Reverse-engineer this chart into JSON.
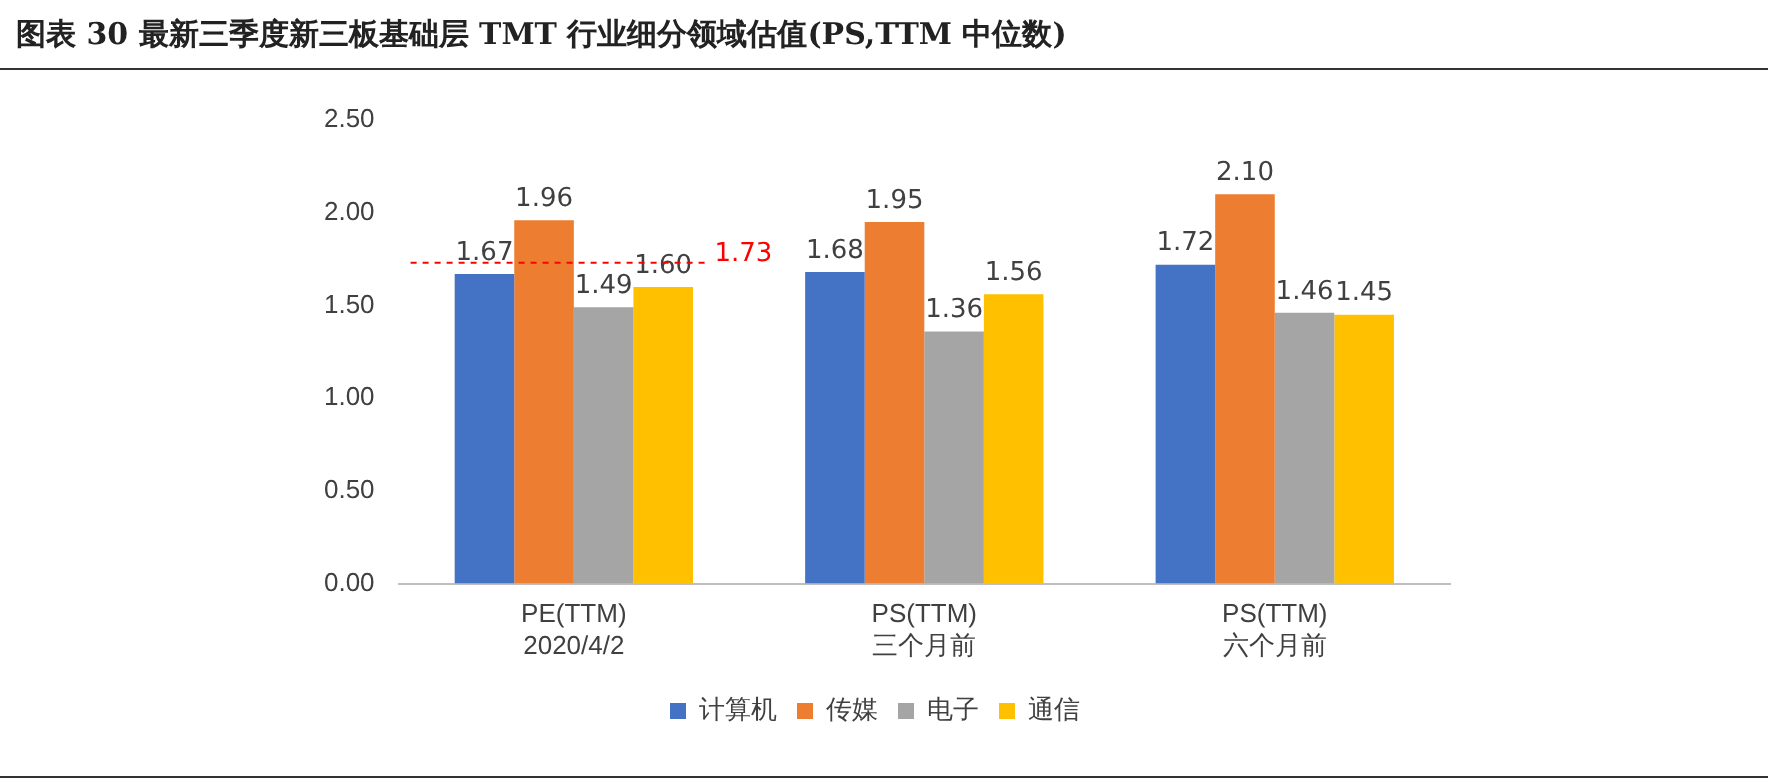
{
  "chart_data": {
    "type": "bar",
    "title": "图表 30 最新三季度新三板基础层 TMT 行业细分领域估值(PS,TTM 中位数)",
    "categories": [
      "PE(TTM)\n2020/4/2",
      "PS(TTM)\n三个月前",
      "PS(TTM)\n六个月前"
    ],
    "series": [
      {
        "name": "计算机",
        "color": "#4472c4",
        "values": [
          1.67,
          1.68,
          1.72
        ],
        "value_labels": [
          "1.67",
          "1.68",
          "1.72"
        ]
      },
      {
        "name": "传媒",
        "color": "#ed7d31",
        "values": [
          1.96,
          1.95,
          2.1
        ],
        "value_labels": [
          "1.96",
          "1.95",
          "2.10"
        ]
      },
      {
        "name": "电子",
        "color": "#a5a5a5",
        "values": [
          1.49,
          1.36,
          1.46
        ],
        "value_labels": [
          "1.49",
          "1.36",
          "1.46"
        ]
      },
      {
        "name": "通信",
        "color": "#ffc000",
        "values": [
          1.6,
          1.56,
          1.45
        ],
        "value_labels": [
          "1.60",
          "1.56",
          "1.45"
        ]
      }
    ],
    "ylim": [
      0,
      2.5
    ],
    "yticks": [
      {
        "value": 0,
        "label": "0.00"
      },
      {
        "value": 0.5,
        "label": "0.50"
      },
      {
        "value": 1,
        "label": "1.00"
      },
      {
        "value": 1.5,
        "label": "1.50"
      },
      {
        "value": 2,
        "label": "2.00"
      },
      {
        "value": 2.5,
        "label": "2.50"
      }
    ],
    "ref_lines": [
      {
        "axis": "y",
        "value": 1.73,
        "label": "1.73",
        "color": "#ff0000",
        "line_style": "dashed"
      }
    ],
    "grid": false,
    "legend": "bottom"
  }
}
